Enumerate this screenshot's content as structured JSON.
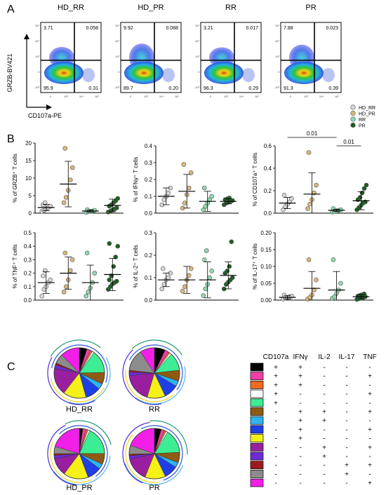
{
  "panel_labels": {
    "a": "A",
    "b": "B",
    "c": "C"
  },
  "flow": {
    "titles": [
      "HD_RR",
      "HD_PR",
      "RR",
      "PR"
    ],
    "y_axis_label": "GRZB-BV421",
    "x_axis_label": "CD107a-PE",
    "quadrants": [
      {
        "ul": "3.71",
        "ur": "0.058",
        "ll": "95.9",
        "lr": "0.31"
      },
      {
        "ul": "9.92",
        "ur": "0.088",
        "ll": "89.7",
        "lr": "0.20"
      },
      {
        "ul": "3.21",
        "ur": "0.017",
        "ll": "96.3",
        "lr": "0.29"
      },
      {
        "ul": "7.88",
        "ur": "0.023",
        "ll": "91.3",
        "lr": "0.39"
      }
    ],
    "y_ticks": [
      "10⁵",
      "10⁴",
      "10³",
      "0",
      "-10³"
    ],
    "x_ticks": [
      "0",
      "10³",
      "10⁴",
      "10⁵"
    ]
  },
  "legend_groups": [
    {
      "name": "HD_RR",
      "color": "#d6d6d6"
    },
    {
      "name": "HD_PR",
      "color": "#d9b77a"
    },
    {
      "name": "RR",
      "color": "#8fd9b0"
    },
    {
      "name": "PR",
      "color": "#1e5e22"
    }
  ],
  "chart_data": [
    {
      "type": "scatter",
      "ylabel": "% of GRZB⁺ T cells",
      "ylim": [
        0,
        20
      ],
      "yticks": [
        "0",
        "5",
        "10",
        "15",
        "20"
      ],
      "groups": [
        "HD_RR",
        "HD_PR",
        "RR",
        "PR"
      ],
      "points": [
        [
          0.5,
          0.8,
          1.2,
          1.6,
          2.0,
          2.4,
          3.0
        ],
        [
          3.0,
          4.5,
          6.5,
          9.5,
          13.0,
          18.5
        ],
        [
          0.2,
          0.4,
          0.5,
          0.6,
          0.8,
          1.0
        ],
        [
          0.3,
          0.6,
          0.9,
          1.2,
          1.5,
          2.0,
          2.4,
          3.0,
          3.5,
          4.2
        ]
      ],
      "mean": [
        1.6,
        8.3,
        0.6,
        2.2
      ],
      "sd": [
        0.9,
        6.5,
        0.3,
        1.8
      ],
      "brackets": []
    },
    {
      "type": "scatter",
      "ylabel": "% of IFNγ⁺ T cells",
      "ylim": [
        0,
        0.4
      ],
      "yticks": [
        "0.0",
        "0.1",
        "0.2",
        "0.3",
        "0.4"
      ],
      "groups": [
        "HD_RR",
        "HD_PR",
        "RR",
        "PR"
      ],
      "points": [
        [
          0.05,
          0.08,
          0.1,
          0.12,
          0.15
        ],
        [
          0.03,
          0.06,
          0.11,
          0.15,
          0.24,
          0.29
        ],
        [
          0.02,
          0.04,
          0.06,
          0.08,
          0.1,
          0.15
        ],
        [
          0.05,
          0.06,
          0.065,
          0.07,
          0.075,
          0.08,
          0.085,
          0.09
        ]
      ],
      "mean": [
        0.1,
        0.13,
        0.07,
        0.07
      ],
      "sd": [
        0.05,
        0.1,
        0.06,
        0.015
      ],
      "brackets": []
    },
    {
      "type": "scatter",
      "ylabel": "% of CD107a⁺ T cells",
      "ylim": [
        0,
        0.6
      ],
      "yticks": [
        "0.0",
        "0.2",
        "0.4",
        "0.6"
      ],
      "groups": [
        "HD_RR",
        "HD_PR",
        "RR",
        "PR"
      ],
      "points": [
        [
          0.03,
          0.06,
          0.08,
          0.1,
          0.13,
          0.16
        ],
        [
          0.04,
          0.08,
          0.12,
          0.18,
          0.25,
          0.54
        ],
        [
          0.01,
          0.015,
          0.02,
          0.025,
          0.03,
          0.04
        ],
        [
          0.03,
          0.05,
          0.07,
          0.09,
          0.1,
          0.12,
          0.14,
          0.18,
          0.22,
          0.25
        ]
      ],
      "mean": [
        0.09,
        0.17,
        0.025,
        0.11
      ],
      "sd": [
        0.05,
        0.19,
        0.01,
        0.08
      ],
      "brackets": [
        {
          "from": 0,
          "to": 2,
          "label": "0.01"
        },
        {
          "from": 2,
          "to": 3,
          "label": "0.01"
        }
      ]
    },
    {
      "type": "scatter",
      "ylabel": "% of TNF⁺ T cells",
      "ylim": [
        0,
        0.5
      ],
      "yticks": [
        "0.0",
        "0.1",
        "0.2",
        "0.3",
        "0.4",
        "0.5"
      ],
      "groups": [
        "HD_RR",
        "HD_PR",
        "RR",
        "PR"
      ],
      "points": [
        [
          0.03,
          0.08,
          0.1,
          0.13,
          0.15,
          0.18,
          0.22
        ],
        [
          0.06,
          0.1,
          0.15,
          0.22,
          0.3,
          0.35
        ],
        [
          0.03,
          0.06,
          0.09,
          0.13,
          0.2,
          0.35
        ],
        [
          0.08,
          0.1,
          0.12,
          0.13,
          0.14,
          0.15,
          0.18,
          0.25,
          0.32,
          0.4,
          0.42
        ]
      ],
      "mean": [
        0.13,
        0.2,
        0.13,
        0.19
      ],
      "sd": [
        0.08,
        0.12,
        0.13,
        0.12
      ],
      "brackets": []
    },
    {
      "type": "scatter",
      "ylabel": "% of IL-2⁺ T cells",
      "ylim": [
        0,
        0.3
      ],
      "yticks": [
        "0.0",
        "0.1",
        "0.2",
        "0.3"
      ],
      "groups": [
        "HD_RR",
        "HD_PR",
        "RR",
        "PR"
      ],
      "points": [
        [
          0.05,
          0.07,
          0.09,
          0.1,
          0.12,
          0.14
        ],
        [
          0.04,
          0.06,
          0.09,
          0.11,
          0.14
        ],
        [
          0.02,
          0.05,
          0.07,
          0.1,
          0.13,
          0.18,
          0.22
        ],
        [
          0.05,
          0.07,
          0.08,
          0.09,
          0.1,
          0.12,
          0.13,
          0.15,
          0.26
        ]
      ],
      "mean": [
        0.09,
        0.09,
        0.09,
        0.11
      ],
      "sd": [
        0.03,
        0.06,
        0.08,
        0.06
      ],
      "brackets": []
    },
    {
      "type": "scatter",
      "ylabel": "% of IL-17⁺ T cells",
      "ylim": [
        0,
        0.2
      ],
      "yticks": [
        "0.00",
        "0.05",
        "0.10",
        "0.15",
        "0.20"
      ],
      "groups": [
        "HD_RR",
        "HD_PR",
        "RR",
        "PR"
      ],
      "points": [
        [
          0.003,
          0.006,
          0.008,
          0.01,
          0.012,
          0.015
        ],
        [
          0.003,
          0.008,
          0.015,
          0.03,
          0.06,
          0.12
        ],
        [
          0.005,
          0.01,
          0.02,
          0.03,
          0.05,
          0.12
        ],
        [
          0.002,
          0.004,
          0.006,
          0.008,
          0.01,
          0.012,
          0.014,
          0.016,
          0.018
        ]
      ],
      "mean": [
        0.008,
        0.035,
        0.03,
        0.01
      ],
      "sd": [
        0.005,
        0.05,
        0.055,
        0.006
      ],
      "brackets": []
    }
  ],
  "pies": [
    {
      "label": "HD_RR",
      "slices": [
        4,
        2,
        1,
        1,
        12,
        6,
        3,
        8,
        12,
        14,
        2,
        1,
        5,
        10
      ]
    },
    {
      "label": "RR",
      "slices": [
        6,
        2,
        1,
        1,
        10,
        6,
        3,
        8,
        10,
        16,
        2,
        1,
        12,
        8
      ]
    },
    {
      "label": "HD_PR",
      "slices": [
        2,
        2,
        1,
        1,
        16,
        6,
        3,
        8,
        14,
        10,
        2,
        1,
        4,
        18
      ]
    },
    {
      "label": "PR",
      "slices": [
        4,
        2,
        1,
        1,
        14,
        6,
        3,
        8,
        12,
        14,
        2,
        1,
        5,
        18
      ]
    }
  ],
  "combo_table": {
    "headers": [
      "CD107a",
      "IFNγ",
      "IL-2",
      "IL-17",
      "TNF"
    ],
    "rows": [
      {
        "color": "#000000",
        "cells": [
          "+",
          "+",
          "-",
          "-",
          "-"
        ]
      },
      {
        "color": "#f23ea8",
        "cells": [
          "+",
          "+",
          "-",
          "-",
          "+"
        ]
      },
      {
        "color": "#f26b21",
        "cells": [
          "+",
          "+",
          "-",
          "-",
          "-"
        ]
      },
      {
        "color": "#ffffff",
        "cells": [
          "+",
          "-",
          "-",
          "-",
          "+"
        ]
      },
      {
        "color": "#3ded93",
        "cells": [
          "+",
          "-",
          "-",
          "-",
          "-"
        ]
      },
      {
        "color": "#8f5a12",
        "cells": [
          "-",
          "+",
          "+",
          "-",
          "+"
        ]
      },
      {
        "color": "#2fb4f0",
        "cells": [
          "-",
          "+",
          "+",
          "-",
          "-"
        ]
      },
      {
        "color": "#1f3fe6",
        "cells": [
          "-",
          "+",
          "-",
          "-",
          "+"
        ]
      },
      {
        "color": "#f5f016",
        "cells": [
          "-",
          "+",
          "-",
          "-",
          "-"
        ]
      },
      {
        "color": "#9a1fa0",
        "cells": [
          "-",
          "-",
          "+",
          "-",
          "+"
        ]
      },
      {
        "color": "#6d2bd6",
        "cells": [
          "-",
          "-",
          "+",
          "-",
          "-"
        ]
      },
      {
        "color": "#9e1a1a",
        "cells": [
          "-",
          "-",
          "-",
          "+",
          "+"
        ]
      },
      {
        "color": "#8c8c8c",
        "cells": [
          "-",
          "-",
          "-",
          "+",
          "-"
        ]
      },
      {
        "color": "#f21fe8",
        "cells": [
          "-",
          "-",
          "-",
          "-",
          "+"
        ]
      }
    ]
  }
}
